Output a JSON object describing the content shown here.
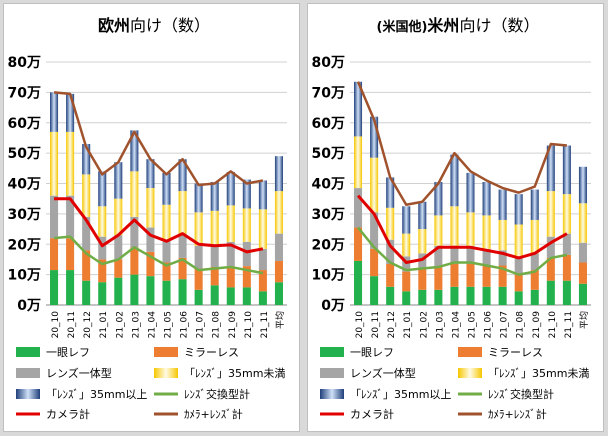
{
  "colors": {
    "slr": "#22b14c",
    "mirrorless": "#ed7d31",
    "compact": "#a5a5a5",
    "lens_small": "#f6c700",
    "lens_large": "#2e5fa8",
    "lens_total": "#70ad47",
    "camera_total": "#e00000",
    "camera_lens_total": "#a0522d",
    "grid": "#d0d0d0",
    "text": "#000000"
  },
  "chart_data": [
    {
      "type": "bar",
      "stacked": true,
      "title_parts": [
        {
          "text": "欧州",
          "weight": "bold"
        },
        {
          "text": "向け（数）",
          "weight": "normal"
        }
      ],
      "categories": [
        "20_10",
        "20_11",
        "20_12",
        "21_01",
        "21_02",
        "21_03",
        "21_04",
        "21_05",
        "21_06",
        "21_07",
        "21_08",
        "21_09",
        "21_10",
        "21_11",
        "平均"
      ],
      "ylim": [
        0,
        80
      ],
      "yticks": [
        "0万",
        "10万",
        "20万",
        "30万",
        "40万",
        "50万",
        "60万",
        "70万",
        "80万"
      ],
      "bar_series": [
        {
          "key": "slr",
          "name": "一眼レフ",
          "values": [
            11.5,
            11.5,
            8,
            7.5,
            9,
            10,
            9.5,
            8,
            8.5,
            5,
            6.5,
            5.8,
            5.8,
            4.5,
            7.5
          ]
        },
        {
          "key": "mirrorless",
          "name": "ミラーレス",
          "values": [
            10.5,
            10.5,
            10,
            7.5,
            6,
            9,
            8,
            6,
            7,
            7,
            6,
            7,
            7,
            7,
            7
          ]
        },
        {
          "key": "compact",
          "name": "レンズ一体型",
          "values": [
            14,
            14,
            11,
            7.5,
            8,
            10,
            8,
            7,
            8,
            7.5,
            7.5,
            8,
            8,
            7,
            9
          ]
        },
        {
          "key": "lens_small",
          "name": "「ﾚﾝｽﾞ」35mm未満",
          "values": [
            21,
            21,
            14,
            10,
            12,
            15,
            13,
            12,
            14,
            11,
            11,
            12,
            11,
            13,
            14
          ]
        },
        {
          "key": "lens_large",
          "name": "「ﾚﾝｽﾞ」35mm以上",
          "values": [
            13,
            12.5,
            10,
            11.5,
            12,
            13.5,
            9.5,
            10.5,
            10.5,
            9.5,
            9.5,
            11,
            9.5,
            9.5,
            11.5
          ]
        }
      ],
      "line_series": [
        {
          "key": "camera_total",
          "name": "カメラ計",
          "values": [
            35,
            35,
            28,
            19.5,
            23,
            28,
            23,
            21,
            23.5,
            20,
            19.5,
            19.8,
            17.5,
            18.5
          ]
        },
        {
          "key": "lens_total",
          "name": "ﾚﾝｽﾞ交換型計",
          "values": [
            22,
            22.5,
            17,
            13.5,
            15,
            19,
            16,
            13,
            15,
            11.5,
            12,
            12.5,
            11.5,
            10.5
          ]
        },
        {
          "key": "camera_lens_total",
          "name": "ｶﾒﾗ+ﾚﾝｽﾞ計",
          "values": [
            70,
            69.5,
            52,
            43,
            47,
            57,
            48,
            43,
            48,
            39.5,
            40,
            44,
            40,
            41
          ]
        }
      ],
      "legend": [
        {
          "key": "slr",
          "label": "一眼レフ",
          "kind": "bar"
        },
        {
          "key": "mirrorless",
          "label": "ミラーレス",
          "kind": "bar"
        },
        {
          "key": "compact",
          "label": "レンズ一体型",
          "kind": "bar"
        },
        {
          "key": "lens_small",
          "label": "「ﾚﾝｽﾞ」35mm未満",
          "kind": "bar"
        },
        {
          "key": "lens_large",
          "label": "「ﾚﾝｽﾞ」35mm以上",
          "kind": "bar"
        },
        {
          "key": "lens_total",
          "label": "ﾚﾝｽﾞ交換型計",
          "kind": "line"
        },
        {
          "key": "camera_total",
          "label": "カメラ計",
          "kind": "line"
        },
        {
          "key": "camera_lens_total",
          "label": "ｶﾒﾗ+ﾚﾝｽﾞ計",
          "kind": "line"
        }
      ]
    },
    {
      "type": "bar",
      "stacked": true,
      "title_parts": [
        {
          "text": "(米国他)",
          "weight": "small-bold"
        },
        {
          "text": "米州",
          "weight": "bold"
        },
        {
          "text": "向け（数）",
          "weight": "normal"
        }
      ],
      "categories": [
        "20_10",
        "20_11",
        "20_12",
        "21_01",
        "21_02",
        "21_03",
        "21_04",
        "21_05",
        "21_06",
        "21_07",
        "21_08",
        "21_09",
        "21_10",
        "21_11",
        "平均"
      ],
      "ylim": [
        0,
        80
      ],
      "yticks": [
        "0万",
        "10万",
        "20万",
        "30万",
        "40万",
        "50万",
        "60万",
        "70万",
        "80万"
      ],
      "bar_series": [
        {
          "key": "slr",
          "name": "一眼レフ",
          "values": [
            14.5,
            9.5,
            6,
            4.5,
            5,
            5,
            6,
            6,
            6,
            6,
            4.5,
            5,
            8,
            8,
            7
          ]
        },
        {
          "key": "mirrorless",
          "name": "ミラーレス",
          "values": [
            11,
            9,
            7.5,
            6.5,
            7,
            7.5,
            7.5,
            7.5,
            7,
            7,
            6,
            6.5,
            7.5,
            8.5,
            7
          ]
        },
        {
          "key": "compact",
          "name": "レンズ一体型",
          "values": [
            13,
            12,
            8,
            5,
            5,
            7,
            6,
            6,
            5.5,
            5,
            5,
            5.5,
            7,
            7,
            6.5
          ]
        },
        {
          "key": "lens_small",
          "name": "「ﾚﾝｽﾞ」35mm未満",
          "values": [
            17,
            18,
            10.5,
            7.5,
            8,
            10,
            13,
            11,
            11,
            10,
            11,
            11,
            15,
            13,
            13
          ]
        },
        {
          "key": "lens_large",
          "name": "「ﾚﾝｽﾞ」35mm以上",
          "values": [
            18,
            13.5,
            10,
            9,
            9,
            11,
            17,
            13,
            11,
            10,
            10,
            10,
            15,
            16,
            12
          ]
        }
      ],
      "line_series": [
        {
          "key": "camera_total",
          "name": "カメラ計",
          "values": [
            36,
            30,
            19.5,
            14,
            15,
            19,
            19,
            19,
            18,
            17,
            15.5,
            17,
            20.5,
            23.5
          ]
        },
        {
          "key": "lens_total",
          "name": "ﾚﾝｽﾞ交換型計",
          "values": [
            25.5,
            19,
            14,
            11.5,
            12,
            12.5,
            14,
            14,
            13,
            12,
            10,
            11,
            15.5,
            16.5
          ]
        },
        {
          "key": "camera_lens_total",
          "name": "ｶﾒﾗ+ﾚﾝｽﾞ計",
          "values": [
            73.5,
            61,
            42,
            33,
            34,
            40,
            50,
            44,
            41,
            38.5,
            37,
            39,
            53,
            52.5
          ]
        }
      ],
      "legend": [
        {
          "key": "slr",
          "label": "一眼レフ",
          "kind": "bar"
        },
        {
          "key": "mirrorless",
          "label": "ミラーレス",
          "kind": "bar"
        },
        {
          "key": "compact",
          "label": "レンズ一体型",
          "kind": "bar"
        },
        {
          "key": "lens_small",
          "label": "「ﾚﾝｽﾞ」35mm未満",
          "kind": "bar"
        },
        {
          "key": "lens_large",
          "label": "「ﾚﾝｽﾞ」35mm以上",
          "kind": "bar"
        },
        {
          "key": "lens_total",
          "label": "ﾚﾝｽﾞ交換型計",
          "kind": "line"
        },
        {
          "key": "camera_total",
          "label": "カメラ計",
          "kind": "line"
        },
        {
          "key": "camera_lens_total",
          "label": "ｶﾒﾗ+ﾚﾝｽﾞ計",
          "kind": "line"
        }
      ]
    }
  ]
}
